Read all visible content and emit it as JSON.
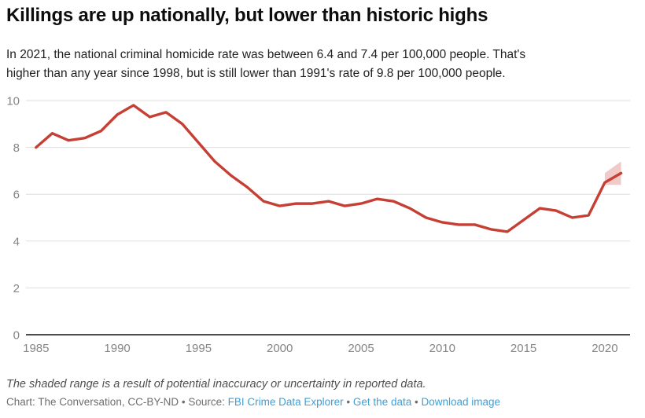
{
  "header": {
    "title": "Killings are up nationally, but lower than historic highs",
    "subtitle_lines": [
      "In 2021, the national criminal homicide rate was between 6.4 and 7.4 per 100,000 people. That's",
      "higher than any year since 1998, but is still lower than 1991's rate of 9.8 per 100,000 people."
    ]
  },
  "chart_data": {
    "type": "line",
    "title": "Killings are up nationally, but lower than historic highs",
    "xlabel": "",
    "ylabel": "",
    "x": [
      1985,
      1986,
      1987,
      1988,
      1989,
      1990,
      1991,
      1992,
      1993,
      1994,
      1995,
      1996,
      1997,
      1998,
      1999,
      2000,
      2001,
      2002,
      2003,
      2004,
      2005,
      2006,
      2007,
      2008,
      2009,
      2010,
      2011,
      2012,
      2013,
      2014,
      2015,
      2016,
      2017,
      2018,
      2019,
      2020,
      2021
    ],
    "series": [
      {
        "name": "National criminal homicide rate per 100,000 people",
        "values": [
          8.0,
          8.6,
          8.3,
          8.4,
          8.7,
          9.4,
          9.8,
          9.3,
          9.5,
          9.0,
          8.2,
          7.4,
          6.8,
          6.3,
          5.7,
          5.5,
          5.6,
          5.6,
          5.7,
          5.5,
          5.6,
          5.8,
          5.7,
          5.4,
          5.0,
          4.8,
          4.7,
          4.7,
          4.5,
          4.4,
          4.9,
          5.4,
          5.3,
          5.0,
          5.1,
          6.5,
          6.9
        ]
      }
    ],
    "uncertainty_band": {
      "x": [
        2020,
        2021
      ],
      "lower": [
        6.4,
        6.4
      ],
      "upper": [
        6.9,
        7.4
      ]
    },
    "xlim": [
      1985,
      2021
    ],
    "ylim": [
      0,
      10.3
    ],
    "xticks": [
      1985,
      1990,
      1995,
      2000,
      2005,
      2010,
      2015,
      2020
    ],
    "yticks": [
      0,
      2,
      4,
      6,
      8,
      10
    ],
    "grid": "horizontal",
    "legend": "none",
    "colors": {
      "line": "#c53f34",
      "band_opacity": 0.28,
      "grid": "#dddddd",
      "axis": "#4d4d4d",
      "tick_label": "#858585"
    }
  },
  "footer": {
    "note": "The shaded range is a result of potential inaccuracy or uncertainty in reported data.",
    "credit_prefix": "Chart: The Conversation, CC-BY-ND • Source:",
    "separator": "•",
    "links": [
      {
        "label": "FBI Crime Data Explorer"
      },
      {
        "label": "Get the data"
      },
      {
        "label": "Download image"
      }
    ],
    "link_color": "#3aa0d9"
  }
}
